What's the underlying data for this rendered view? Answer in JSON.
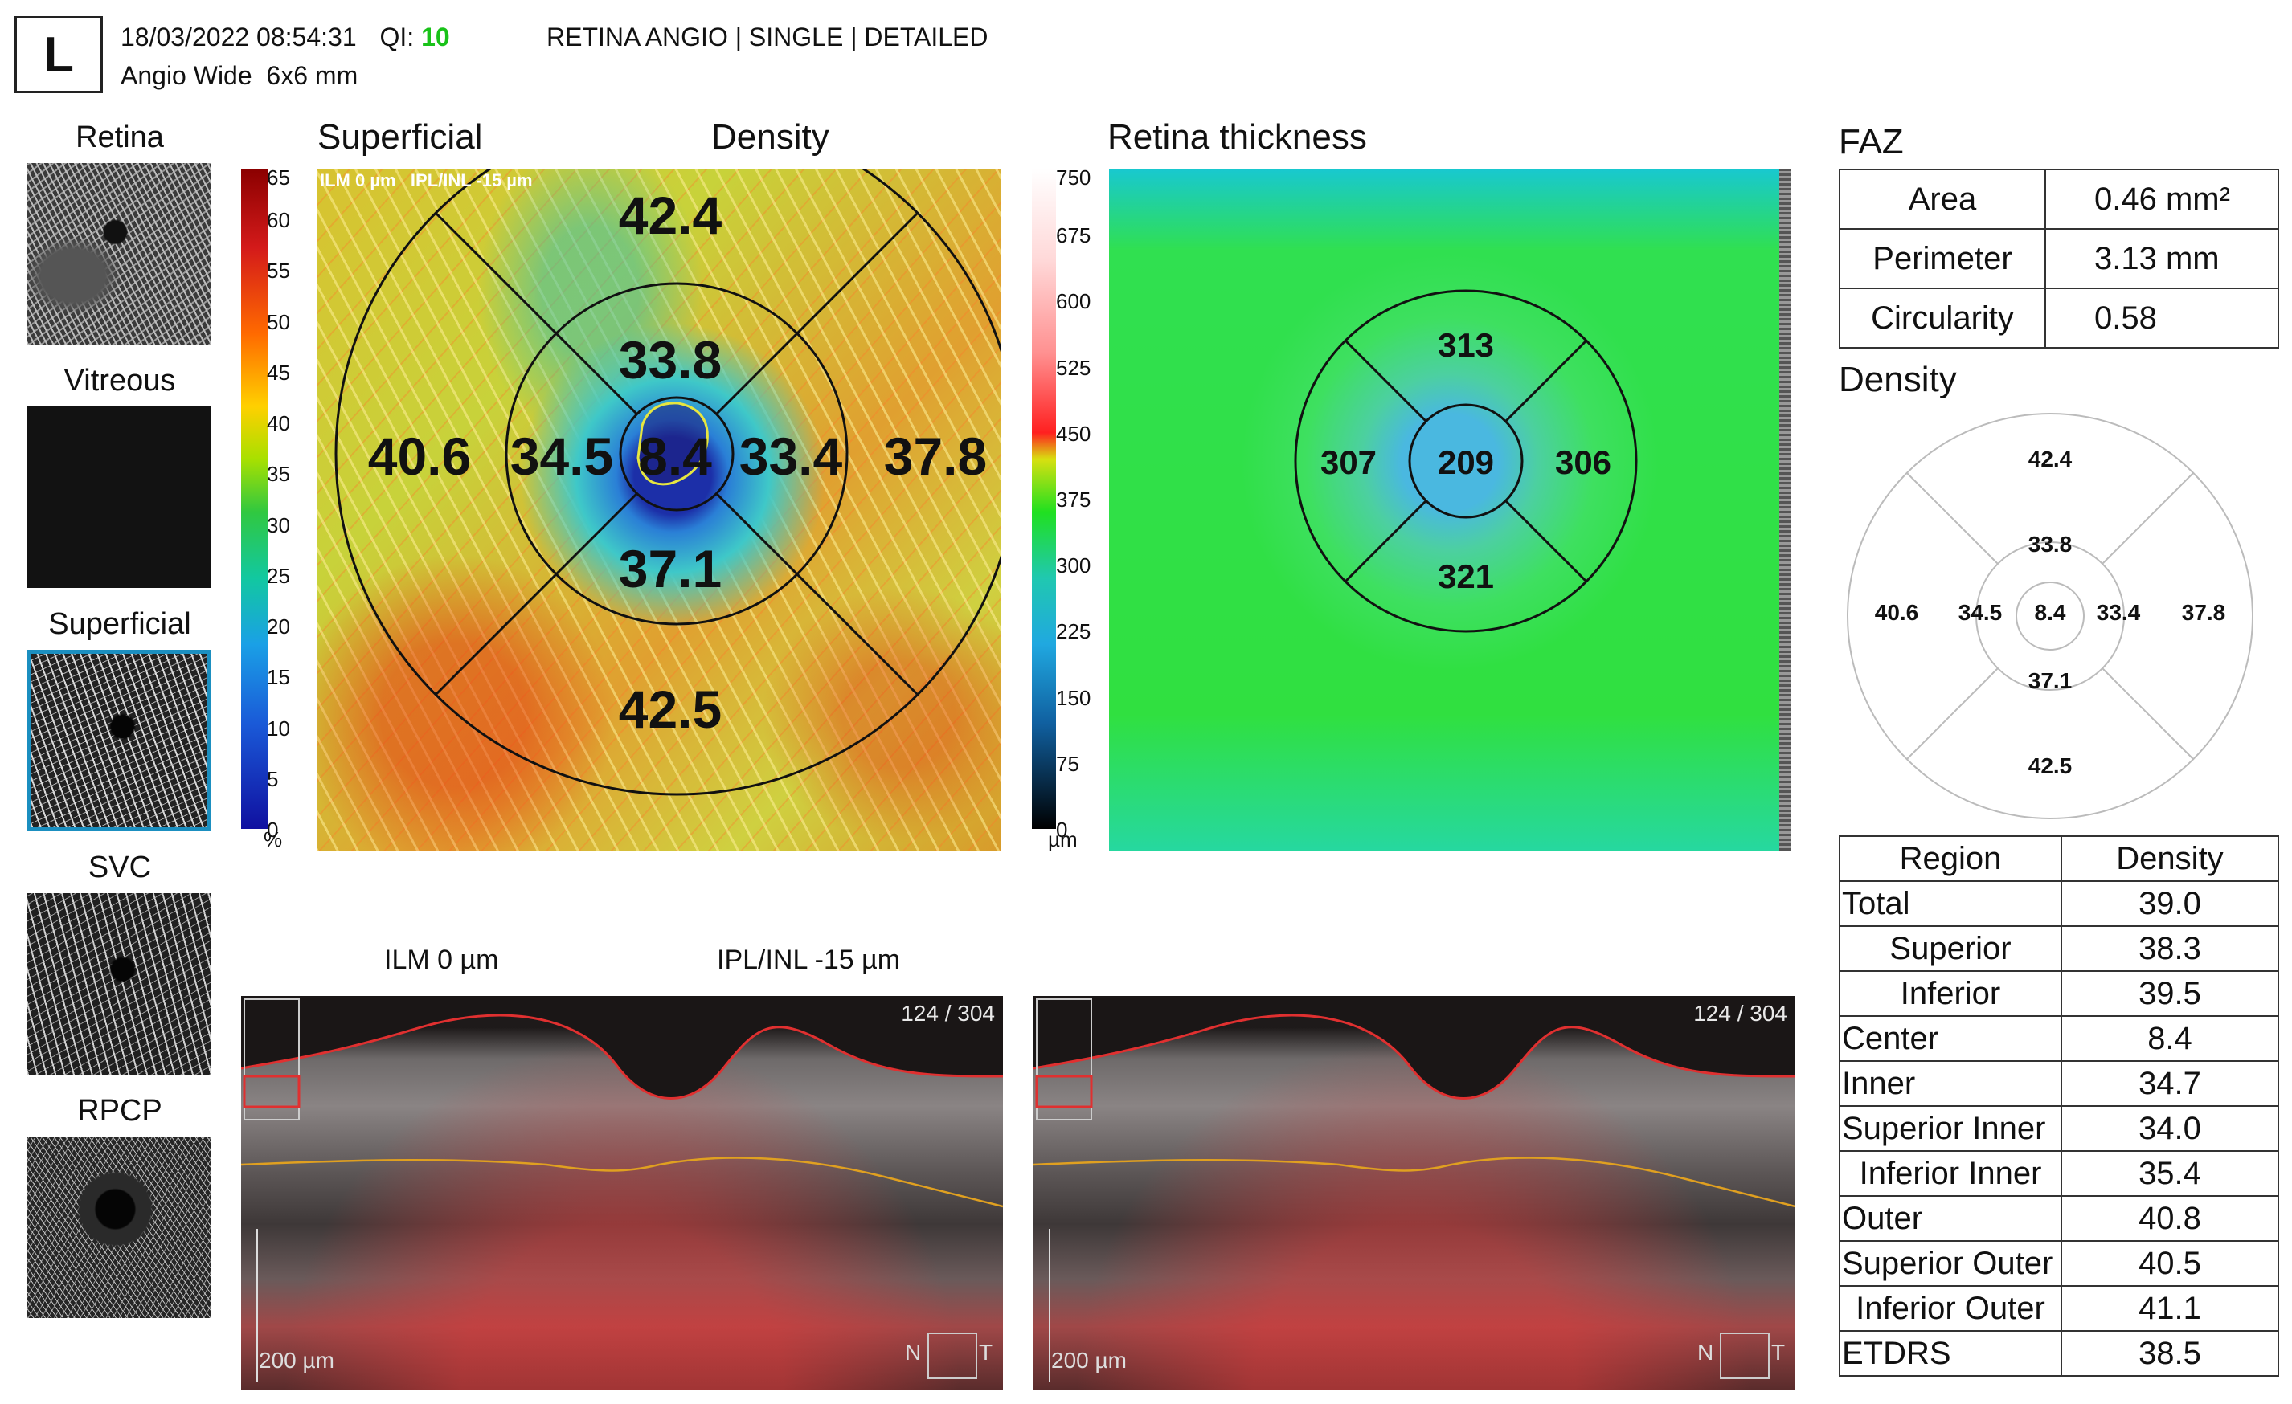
{
  "header": {
    "eye": "L",
    "datetime": "18/03/2022 08:54:31",
    "qi_label": "QI:",
    "qi_value": "10",
    "scan": "Angio Wide  6x6 mm",
    "mode": "RETINA ANGIO | SINGLE | DETAILED"
  },
  "thumbnails": [
    {
      "label": "Retina"
    },
    {
      "label": "Vitreous"
    },
    {
      "label": "Superficial",
      "selected": true
    },
    {
      "label": "SVC"
    },
    {
      "label": "RPCP"
    }
  ],
  "density_map": {
    "title_left": "Superficial",
    "title_right": "Density",
    "overlay_text": "ILM 0 µm   IPL/INL -15 µm",
    "scale_ticks": [
      "65",
      "60",
      "55",
      "50",
      "45",
      "40",
      "35",
      "30",
      "25",
      "20",
      "15",
      "10",
      "5",
      "0"
    ],
    "scale_unit": "%",
    "values": {
      "superior_outer": "42.4",
      "superior_inner": "33.8",
      "nasal_outer": "40.6",
      "nasal_inner": "34.5",
      "center": "8.4",
      "temporal_inner": "33.4",
      "temporal_outer": "37.8",
      "inferior_inner": "37.1",
      "inferior_outer": "42.5"
    }
  },
  "thickness_map": {
    "title": "Retina thickness",
    "scale_ticks": [
      "750",
      "675",
      "600",
      "525",
      "450",
      "375",
      "300",
      "225",
      "150",
      "75",
      "0"
    ],
    "scale_unit": "µm",
    "values": {
      "superior": "313",
      "nasal": "307",
      "center": "209",
      "temporal": "306",
      "inferior": "321"
    }
  },
  "faz": {
    "title": "FAZ",
    "rows": [
      {
        "label": "Area",
        "value": "0.46 mm²"
      },
      {
        "label": "Perimeter",
        "value": "3.13 mm"
      },
      {
        "label": "Circularity",
        "value": "0.58"
      }
    ]
  },
  "density_chart": {
    "title": "Density",
    "values": {
      "superior_outer": "42.4",
      "superior_inner": "33.8",
      "nasal_outer": "40.6",
      "nasal_inner": "34.5",
      "center": "8.4",
      "temporal_inner": "33.4",
      "temporal_outer": "37.8",
      "inferior_inner": "37.1",
      "inferior_outer": "42.5"
    }
  },
  "density_table": {
    "headers": [
      "Region",
      "Density"
    ],
    "rows": [
      {
        "region": "Total",
        "value": "39.0",
        "align": "left"
      },
      {
        "region": "Superior",
        "value": "38.3",
        "align": "center"
      },
      {
        "region": "Inferior",
        "value": "39.5",
        "align": "center"
      },
      {
        "region": "Center",
        "value": "8.4",
        "align": "left"
      },
      {
        "region": "Inner",
        "value": "34.7",
        "align": "left"
      },
      {
        "region": "Superior Inner",
        "value": "34.0",
        "align": "left"
      },
      {
        "region": "Inferior Inner",
        "value": "35.4",
        "align": "center"
      },
      {
        "region": "Outer",
        "value": "40.8",
        "align": "left"
      },
      {
        "region": "Superior Outer",
        "value": "40.5",
        "align": "left"
      },
      {
        "region": "Inferior Outer",
        "value": "41.1",
        "align": "center"
      },
      {
        "region": "ETDRS",
        "value": "38.5",
        "align": "left"
      }
    ]
  },
  "oct": {
    "label_left": "ILM 0 µm",
    "label_right": "IPL/INL -15 µm",
    "counter": "124 / 304",
    "scalebar": "200 µm",
    "orient_n": "N",
    "orient_t": "T"
  }
}
